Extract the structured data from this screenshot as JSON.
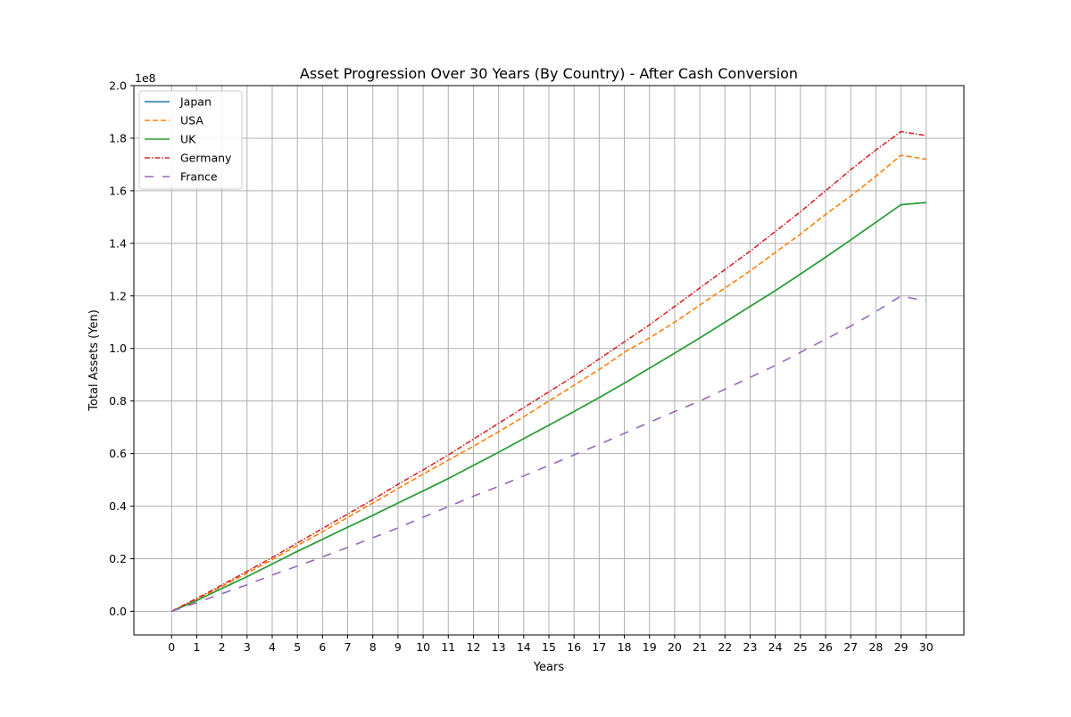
{
  "chart_data": {
    "type": "line",
    "title": "Asset Progression Over 30 Years (By Country) - After Cash Conversion",
    "xlabel": "Years",
    "ylabel": "Total Assets (Yen)",
    "y_offset_label": "1e8",
    "y_scale_factor": 100000000,
    "xlim": [
      -1.5,
      31.5
    ],
    "ylim": [
      -9000000,
      200000000
    ],
    "grid": true,
    "legend_position": "top-left",
    "x": [
      0,
      1,
      2,
      3,
      4,
      5,
      6,
      7,
      8,
      9,
      10,
      11,
      12,
      13,
      14,
      15,
      16,
      17,
      18,
      19,
      20,
      21,
      22,
      23,
      24,
      25,
      26,
      27,
      28,
      29,
      30
    ],
    "x_ticks": [
      0,
      1,
      2,
      3,
      4,
      5,
      6,
      7,
      8,
      9,
      10,
      11,
      12,
      13,
      14,
      15,
      16,
      17,
      18,
      19,
      20,
      21,
      22,
      23,
      24,
      25,
      26,
      27,
      28,
      29,
      30
    ],
    "x_tick_labels": [
      "0",
      "1",
      "2",
      "3",
      "4",
      "5",
      "6",
      "7",
      "8",
      "9",
      "10",
      "11",
      "12",
      "13",
      "14",
      "15",
      "16",
      "17",
      "18",
      "19",
      "20",
      "21",
      "22",
      "23",
      "24",
      "25",
      "26",
      "27",
      "28",
      "29",
      "30"
    ],
    "y_ticks": [
      0,
      20000000,
      40000000,
      60000000,
      80000000,
      100000000,
      120000000,
      140000000,
      160000000,
      180000000,
      200000000
    ],
    "y_tick_labels": [
      "0.0",
      "0.2",
      "0.4",
      "0.6",
      "0.8",
      "1.0",
      "1.2",
      "1.4",
      "1.6",
      "1.8",
      "2.0"
    ],
    "series": [
      {
        "name": "Japan",
        "color": "#1f77b4",
        "dash": "solid",
        "values": [
          0,
          4100000,
          8700000,
          13200000,
          18000000,
          22800000,
          27400000,
          32000000,
          36500000,
          41200000,
          45800000,
          50500000,
          55500000,
          60500000,
          65700000,
          70800000,
          76000000,
          81300000,
          86800000,
          92500000,
          98200000,
          104000000,
          110000000,
          116000000,
          122000000,
          128300000,
          134700000,
          141300000,
          148000000,
          154700000,
          155500000
        ]
      },
      {
        "name": "USA",
        "color": "#ff7f0e",
        "dash": "dashed",
        "values": [
          0,
          4500000,
          9500000,
          14500000,
          19700000,
          25000000,
          30300000,
          35700000,
          41200000,
          46700000,
          52200000,
          57500000,
          62800000,
          68300000,
          74000000,
          80000000,
          86000000,
          92000000,
          98500000,
          104000000,
          110000000,
          116500000,
          123000000,
          129500000,
          136500000,
          143500000,
          151000000,
          158000000,
          165500000,
          173500000,
          172000000
        ]
      },
      {
        "name": "UK",
        "color": "#2ca02c",
        "dash": "solid",
        "values": [
          0,
          4100000,
          8700000,
          13200000,
          18000000,
          22800000,
          27400000,
          32000000,
          36500000,
          41200000,
          45800000,
          50500000,
          55500000,
          60500000,
          65700000,
          70800000,
          76000000,
          81300000,
          86800000,
          92500000,
          98200000,
          104000000,
          110000000,
          116000000,
          122000000,
          128300000,
          134700000,
          141300000,
          148000000,
          154700000,
          155500000
        ]
      },
      {
        "name": "Germany",
        "color": "#d62728",
        "dash": "dashdot",
        "values": [
          0,
          4900000,
          10000000,
          15200000,
          20500000,
          26000000,
          31500000,
          37000000,
          42500000,
          48300000,
          53800000,
          59500000,
          65500000,
          71500000,
          77500000,
          83500000,
          89500000,
          96000000,
          102500000,
          109000000,
          116000000,
          123000000,
          130000000,
          137000000,
          144500000,
          152000000,
          160000000,
          168000000,
          175500000,
          182500000,
          181000000
        ]
      },
      {
        "name": "France",
        "color": "#9467bd",
        "dash": "longdash",
        "values": [
          0,
          3300000,
          6700000,
          10100000,
          13800000,
          17200000,
          20700000,
          24300000,
          28000000,
          31700000,
          35800000,
          39800000,
          43800000,
          47500000,
          51500000,
          55500000,
          59500000,
          63500000,
          67700000,
          71900000,
          76000000,
          80000000,
          84500000,
          89000000,
          93500000,
          98500000,
          103500000,
          108500000,
          114000000,
          120000000,
          118000000
        ]
      }
    ]
  }
}
